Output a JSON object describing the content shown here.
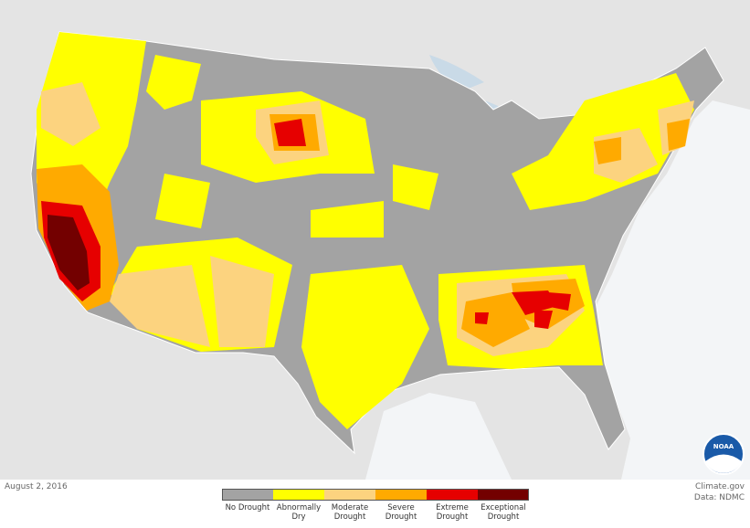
{
  "map": {
    "date": "August 2, 2016",
    "credit": "Climate.gov",
    "source": "Data: NDMC",
    "logo": "NOAA",
    "legend": [
      {
        "label": "No Drought",
        "color": "#a3a3a3"
      },
      {
        "label": "Abnormally Dry",
        "color": "#ffff00"
      },
      {
        "label": "Moderate Drought",
        "color": "#fcd37f"
      },
      {
        "label": "Severe Drought",
        "color": "#ffaa00"
      },
      {
        "label": "Extreme Drought",
        "color": "#e60000"
      },
      {
        "label": "Exceptional Drought",
        "color": "#730000"
      }
    ]
  }
}
